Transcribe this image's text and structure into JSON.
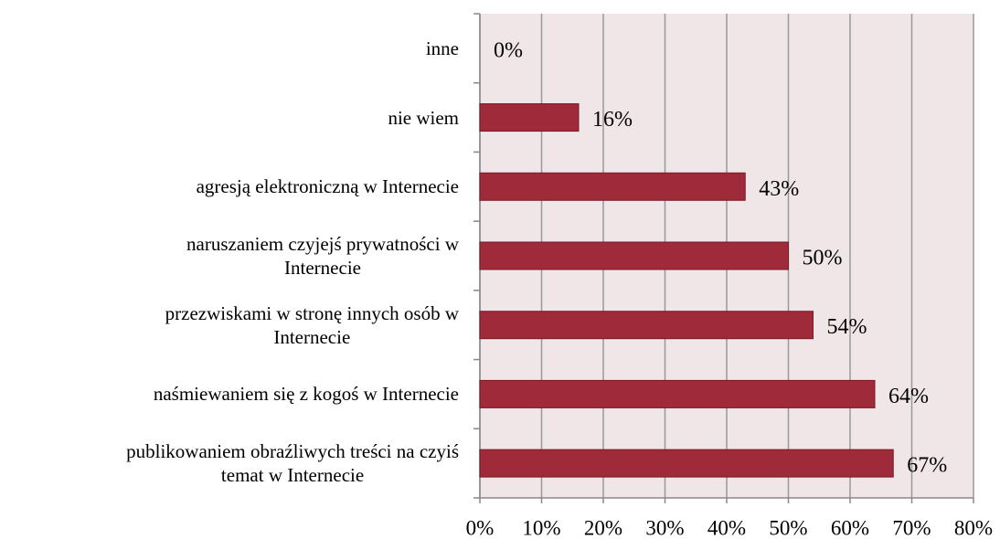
{
  "chart_data": {
    "type": "barh",
    "categories": [
      "inne",
      "nie wiem",
      "agresją elektroniczną w Internecie",
      "naruszaniem czyjejś prywatności w\nInternecie",
      "przezwiskami w stronę innych osób w\nInternecie",
      "naśmiewaniem się z kogoś w Internecie",
      "publikowaniem obraźliwych treści na czyiś\ntemat w Internecie"
    ],
    "values": [
      0,
      16,
      43,
      50,
      54,
      64,
      67
    ],
    "value_labels": [
      "0%",
      "16%",
      "43%",
      "50%",
      "54%",
      "64%",
      "67%"
    ],
    "color": "#9e2a3a",
    "xlim": [
      0,
      80
    ],
    "xticks": [
      {
        "value": 0,
        "label": "0%"
      },
      {
        "value": 10,
        "label": "10%"
      },
      {
        "value": 20,
        "label": "20%"
      },
      {
        "value": 30,
        "label": "30%"
      },
      {
        "value": 40,
        "label": "40%"
      },
      {
        "value": 50,
        "label": "50%"
      },
      {
        "value": 60,
        "label": "60%"
      },
      {
        "value": 70,
        "label": "70%"
      },
      {
        "value": 80,
        "label": "80%"
      }
    ],
    "grid": true
  }
}
